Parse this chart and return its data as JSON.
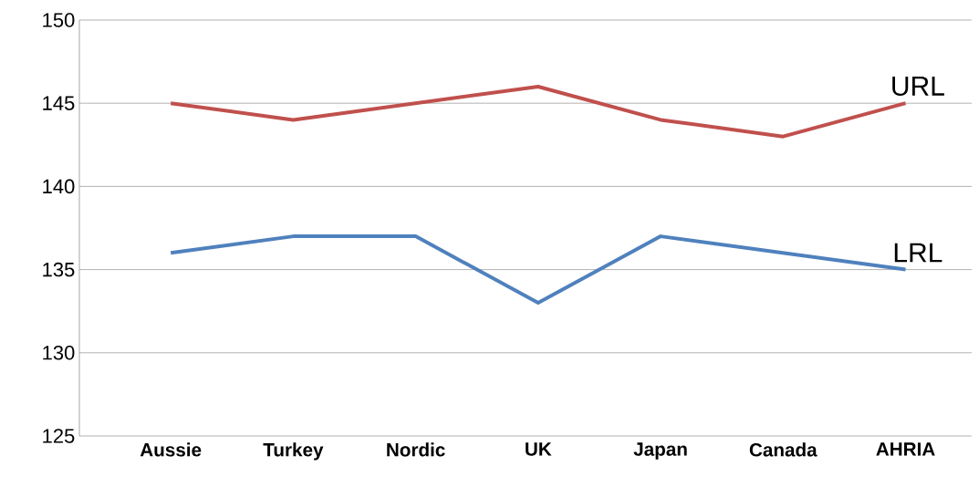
{
  "chart_data": {
    "type": "line",
    "categories": [
      "Aussie",
      "Turkey",
      "Nordic",
      "UK",
      "Japan",
      "Canada",
      "AHRIA"
    ],
    "series": [
      {
        "name": "URL",
        "color": "#c0504d",
        "values": [
          145,
          144,
          145,
          146,
          144,
          143,
          145
        ]
      },
      {
        "name": "LRL",
        "color": "#4f81bd",
        "values": [
          136,
          137,
          137,
          133,
          137,
          136,
          135
        ]
      }
    ],
    "ylim": [
      125,
      150
    ],
    "yticks": [
      125,
      130,
      135,
      140,
      145,
      150
    ],
    "grid": "y",
    "legend": false,
    "marker": "none",
    "line_style": "solid"
  }
}
